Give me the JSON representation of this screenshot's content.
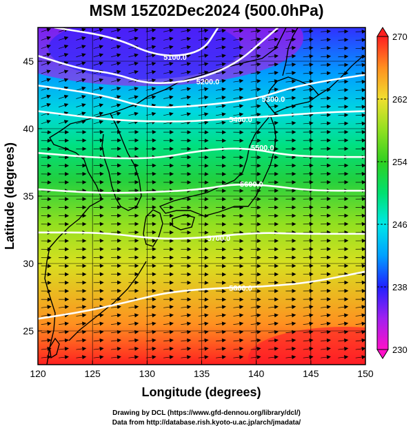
{
  "title": "MSM 15Z02Dec2024 (500.0hPa)",
  "chart_data": {
    "type": "map",
    "xlabel": "Longitude (degrees)",
    "ylabel": "Latitude  (degrees)",
    "xlim": [
      120,
      150
    ],
    "ylim": [
      22.5,
      47.5
    ],
    "xticks": [
      "120",
      "125",
      "130",
      "135",
      "140",
      "145",
      "150"
    ],
    "yticks": [
      "25",
      "30",
      "35",
      "40",
      "45"
    ],
    "colorbar": {
      "min": 230,
      "max": 270,
      "ticks": [
        "230",
        "238",
        "246",
        "254",
        "262",
        "270"
      ],
      "colors": [
        "#ff10c8",
        "#a020f0",
        "#2020ff",
        "#00a0ff",
        "#00e8e8",
        "#00e070",
        "#30d020",
        "#90e020",
        "#f0e030",
        "#ff9020",
        "#ff2020"
      ]
    },
    "contours": [
      {
        "label": "5100.0",
        "points": [
          [
            121.5,
            47.5
          ],
          [
            127,
            46.8
          ],
          [
            131,
            45.3
          ],
          [
            135,
            45.6
          ],
          [
            136.5,
            47.5
          ]
        ]
      },
      {
        "label": "5200.0",
        "points": [
          [
            120,
            45.4
          ],
          [
            124,
            44.4
          ],
          [
            127,
            44.1
          ],
          [
            130,
            43.3
          ],
          [
            134,
            43.5
          ],
          [
            138,
            44.7
          ],
          [
            141,
            46.8
          ],
          [
            142,
            47.5
          ]
        ]
      },
      {
        "label": "5300.0",
        "points": [
          [
            120,
            43.2
          ],
          [
            126,
            42.5
          ],
          [
            130,
            41.5
          ],
          [
            135,
            41.7
          ],
          [
            140,
            42.2
          ],
          [
            143,
            43
          ],
          [
            146,
            43.5
          ],
          [
            150,
            44
          ]
        ]
      },
      {
        "label": "5400.0",
        "points": [
          [
            120,
            41.3
          ],
          [
            127,
            40.6
          ],
          [
            133,
            40.5
          ],
          [
            137,
            40.7
          ],
          [
            141,
            40.9
          ],
          [
            146,
            41.2
          ],
          [
            150,
            41.3
          ]
        ]
      },
      {
        "label": "5500.0",
        "points": [
          [
            120,
            38.2
          ],
          [
            126,
            37.8
          ],
          [
            131,
            37.8
          ],
          [
            135,
            38.4
          ],
          [
            139,
            38.6
          ],
          [
            143,
            38
          ],
          [
            147,
            37.9
          ],
          [
            150,
            37.9
          ]
        ]
      },
      {
        "label": "5600.0",
        "points": [
          [
            120,
            35.5
          ],
          [
            126,
            35.2
          ],
          [
            131,
            35.3
          ],
          [
            135,
            35.5
          ],
          [
            138,
            35.9
          ],
          [
            141,
            35.8
          ],
          [
            145,
            35.4
          ],
          [
            150,
            35.4
          ]
        ]
      },
      {
        "label": "5700.0",
        "points": [
          [
            120,
            32.3
          ],
          [
            126,
            32.3
          ],
          [
            131,
            31.8
          ],
          [
            135,
            31.9
          ],
          [
            140,
            32.3
          ],
          [
            144,
            32.2
          ],
          [
            150,
            32.2
          ]
        ]
      },
      {
        "label": "5800.0",
        "points": [
          [
            120,
            25.9
          ],
          [
            124,
            26.4
          ],
          [
            128,
            27.1
          ],
          [
            132,
            27.9
          ],
          [
            137,
            28.2
          ],
          [
            141,
            28.3
          ],
          [
            145,
            28.6
          ],
          [
            150,
            29.4
          ]
        ]
      }
    ]
  },
  "credits": {
    "line1": "Drawing by DCL (https://www.gfd-dennou.org/library/dcl/)",
    "line2": "Data from http://database.rish.kyoto-u.ac.jp/arch/jmadata/"
  }
}
